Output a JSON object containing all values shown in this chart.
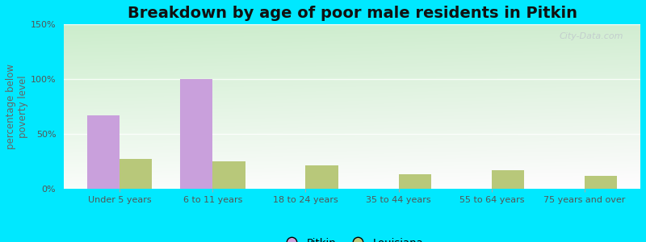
{
  "title": "Breakdown by age of poor male residents in Pitkin",
  "ylabel": "percentage below\npoverty level",
  "categories": [
    "Under 5 years",
    "6 to 11 years",
    "18 to 24 years",
    "35 to 44 years",
    "55 to 64 years",
    "75 years and over"
  ],
  "pitkin_values": [
    67,
    100,
    0,
    0,
    0,
    0
  ],
  "louisiana_values": [
    27,
    25,
    21,
    13,
    17,
    12
  ],
  "pitkin_color": "#c9a0dc",
  "louisiana_color": "#b8c87a",
  "background_color_topleft": "#c8e8c8",
  "background_color_topright": "#e8f8e8",
  "background_color_bottom": "#f8f8f0",
  "outer_bg": "#00e8ff",
  "ylim": [
    0,
    150
  ],
  "yticks": [
    0,
    50,
    100,
    150
  ],
  "ytick_labels": [
    "0%",
    "50%",
    "100%",
    "150%"
  ],
  "bar_width": 0.35,
  "title_fontsize": 14,
  "axis_label_fontsize": 8.5,
  "tick_fontsize": 8,
  "legend_fontsize": 9.5,
  "watermark": "City-Data.com"
}
